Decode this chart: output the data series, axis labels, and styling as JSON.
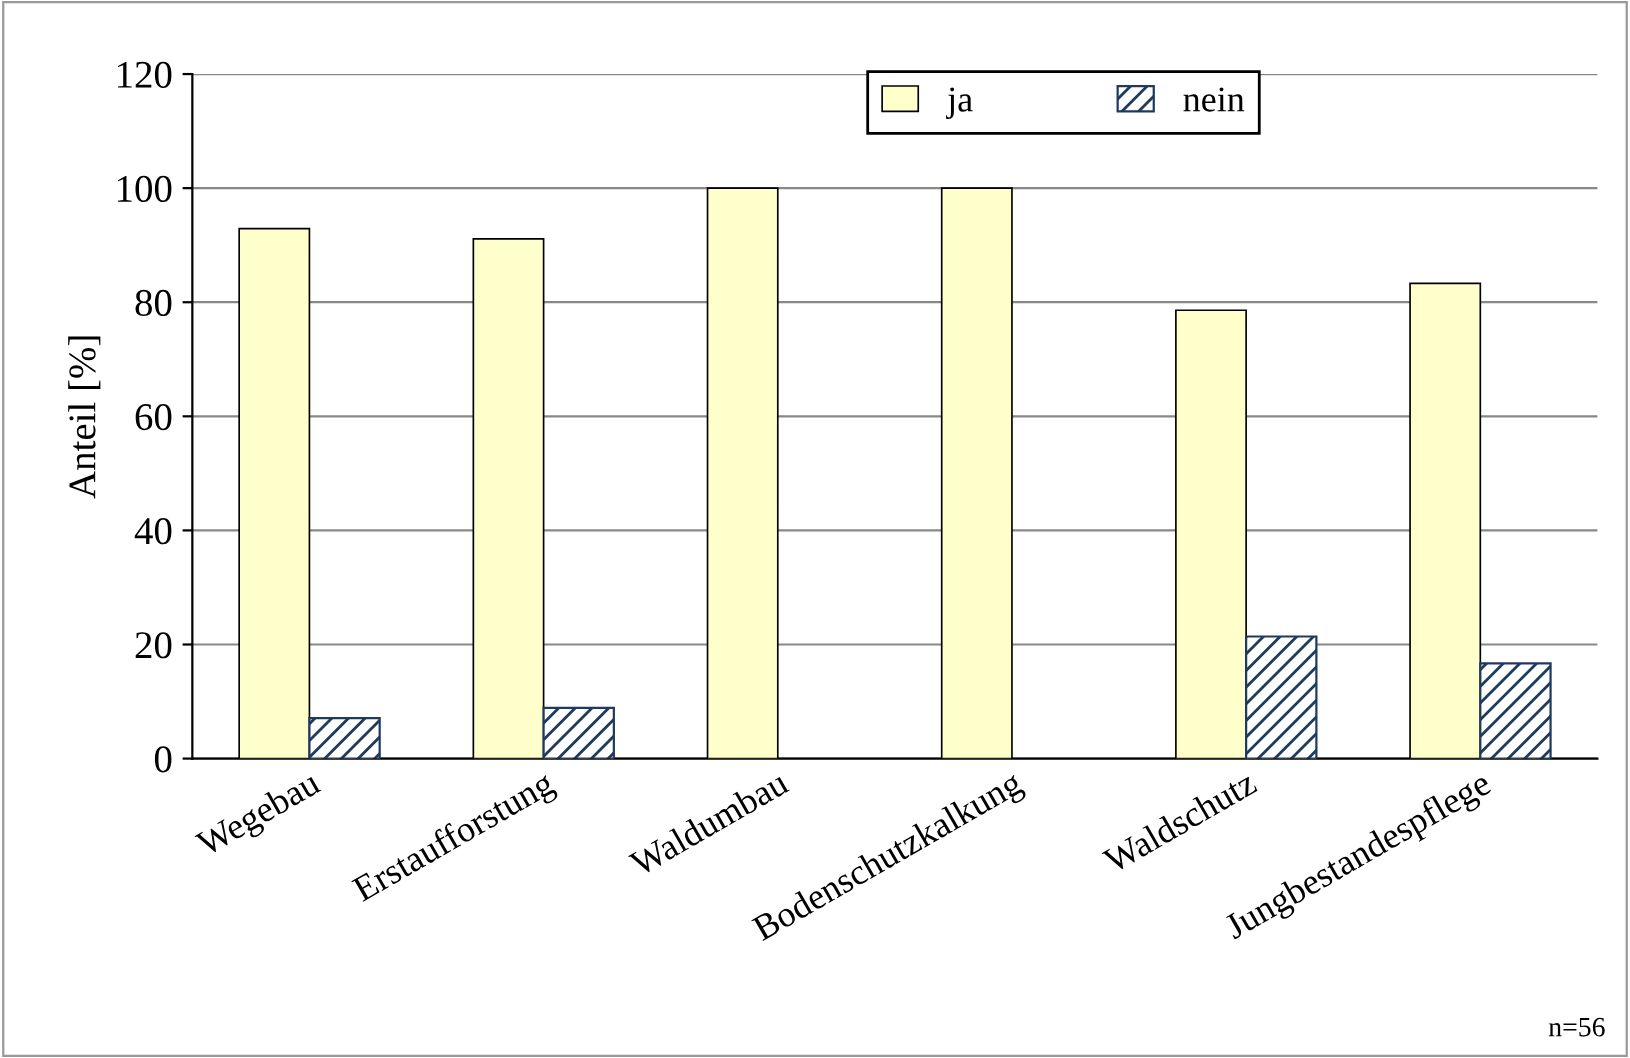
{
  "chart_data": {
    "type": "bar",
    "ylabel": "Anteil [%]",
    "categories": [
      "Wegebau",
      "Erstaufforstung",
      "Waldumbau",
      "Bodenschutzkalkung",
      "Waldschutz",
      "Jungbestandespflege"
    ],
    "series": [
      {
        "name": "ja",
        "color": "#ffffcc",
        "values": [
          92.9,
          91.1,
          100,
          100,
          78.6,
          83.3
        ]
      },
      {
        "name": "nein",
        "color": "#1f3a5f",
        "values": [
          7.1,
          8.9,
          0,
          0,
          21.4,
          16.7
        ]
      }
    ],
    "ylim": [
      0,
      120
    ],
    "yticks": [
      0,
      20,
      40,
      60,
      80,
      100,
      120
    ],
    "grid": "y",
    "legend": "top right",
    "annotations": [
      "n=56"
    ]
  }
}
